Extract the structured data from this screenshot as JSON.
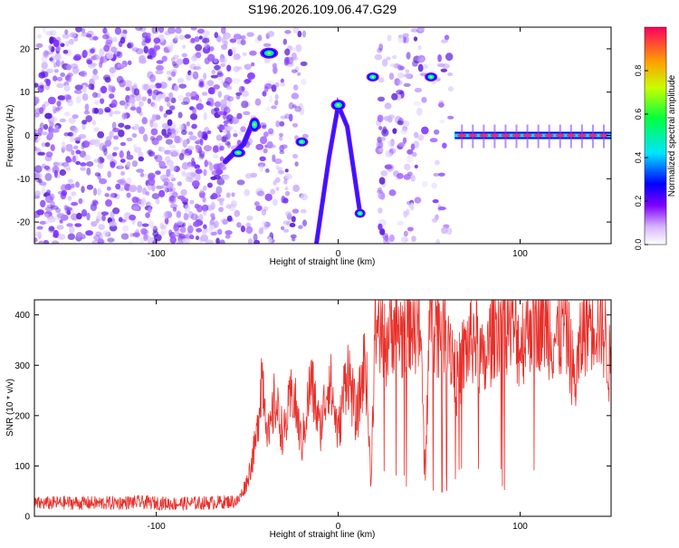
{
  "title": "S196.2026.109.06.47.G29",
  "chart_data": [
    {
      "type": "heatmap",
      "xlabel": "Height of straight line (km)",
      "ylabel": "Frequency (Hz)",
      "xlim": [
        -167,
        150
      ],
      "ylim": [
        -25,
        25
      ],
      "x_ticks": [
        -100,
        0,
        100
      ],
      "y_ticks": [
        -20,
        -10,
        0,
        10,
        20
      ],
      "colorbar": {
        "label": "Normalized spectral amplitude",
        "range": [
          0.0,
          1.0
        ],
        "ticks": [
          0.0,
          0.2,
          0.4,
          0.6,
          0.8
        ]
      },
      "features": [
        {
          "name": "drifting-trace",
          "points": [
            [
              -62,
              -6
            ],
            [
              -57,
              -4
            ],
            [
              -52,
              -2
            ],
            [
              -47,
              3
            ],
            [
              -44,
              2
            ]
          ]
        },
        {
          "name": "high-tone",
          "x_range": [
            -42,
            -34
          ],
          "y": 19
        },
        {
          "name": "mid-spot",
          "x": -20,
          "y": -1.5
        },
        {
          "name": "central-arc",
          "points": [
            [
              -12,
              -25
            ],
            [
              -5,
              -5
            ],
            [
              0,
              7
            ],
            [
              5,
              2
            ],
            [
              12,
              -18
            ]
          ]
        },
        {
          "name": "tone-right-a",
          "x": 19,
          "y": 13.5
        },
        {
          "name": "tone-right-b",
          "x": 51,
          "y": 13.5
        },
        {
          "name": "zero-line",
          "x_range": [
            64,
            150
          ],
          "y": 0
        }
      ]
    },
    {
      "type": "line",
      "xlabel": "Height of straight line (km)",
      "ylabel": "SNR (10 * v/v)",
      "xlim": [
        -167,
        150
      ],
      "ylim": [
        0,
        430
      ],
      "x_ticks": [
        -100,
        0,
        100
      ],
      "y_ticks": [
        0,
        100,
        200,
        300,
        400
      ],
      "series": [
        {
          "name": "SNR",
          "color": "#e8302a",
          "x": [
            -167,
            -150,
            -130,
            -110,
            -90,
            -70,
            -55,
            -50,
            -45,
            -42,
            -38,
            -35,
            -30,
            -25,
            -20,
            -15,
            -10,
            -5,
            0,
            5,
            10,
            15,
            18,
            20,
            22,
            25,
            30,
            35,
            40,
            45,
            48,
            50,
            55,
            60,
            65,
            70,
            75,
            80,
            85,
            90,
            95,
            100,
            105,
            110,
            115,
            120,
            125,
            130,
            135,
            140,
            145,
            150
          ],
          "values": [
            25,
            27,
            26,
            28,
            25,
            27,
            30,
            70,
            150,
            290,
            150,
            230,
            160,
            250,
            140,
            270,
            170,
            280,
            160,
            300,
            190,
            320,
            60,
            350,
            400,
            330,
            390,
            360,
            400,
            370,
            80,
            400,
            380,
            390,
            270,
            330,
            360,
            290,
            370,
            400,
            380,
            340,
            390,
            400,
            380,
            350,
            390,
            260,
            380,
            400,
            390,
            280
          ]
        }
      ]
    }
  ]
}
